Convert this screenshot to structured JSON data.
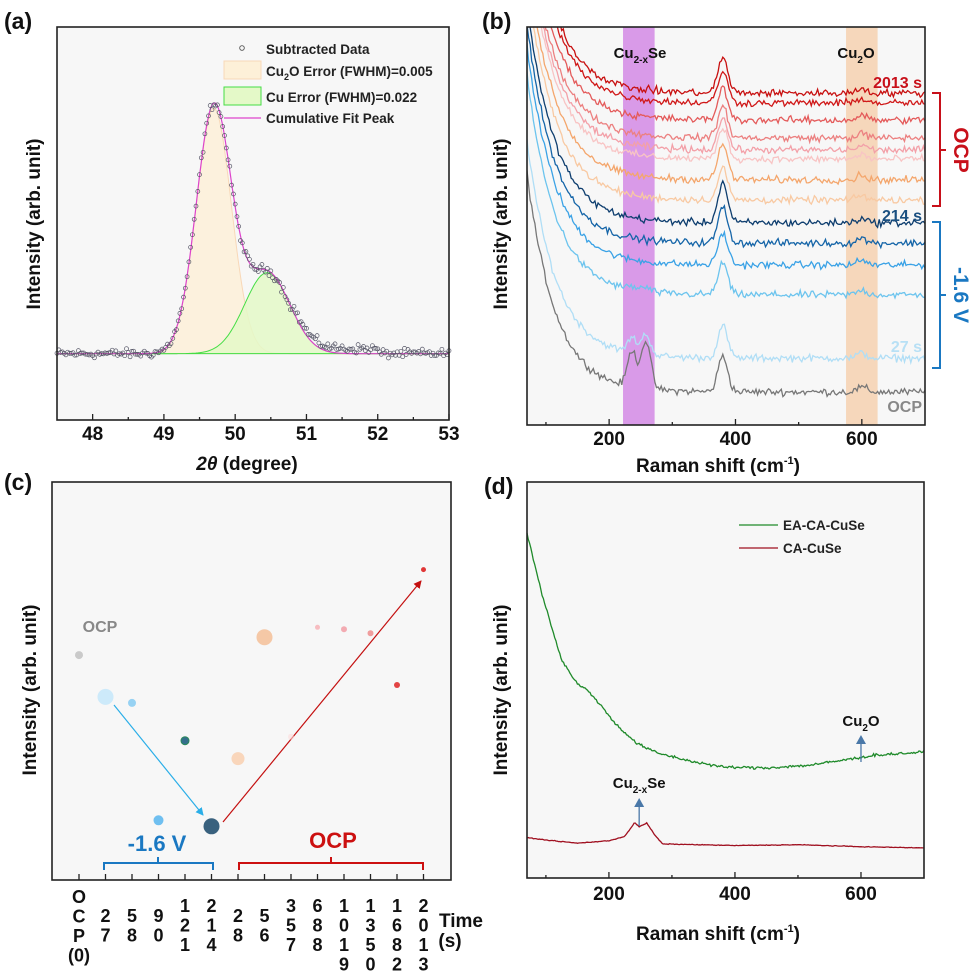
{
  "panels": {
    "a": "(a)",
    "b": "(b)",
    "c": "(c)",
    "d": "(d)"
  },
  "ylabel": "Intensity (arb. unit)",
  "chart_data": [
    {
      "panel": "a",
      "type": "scatter",
      "xlabel": {
        "italic": "2θ",
        "rest": " (degree)"
      },
      "ylabel": "Intensity (arb. unit)",
      "xlim": [
        47.5,
        53
      ],
      "ylim": [
        -0.27,
        1.33
      ],
      "xticks": [
        48,
        49,
        50,
        51,
        52,
        53
      ],
      "fit_peaks": [
        {
          "name": "Cu2O",
          "center": 49.7,
          "amplitude": 1.0,
          "fwhm": 0.58,
          "fill": "#fdf0d8",
          "stroke": "#f8d8b8"
        },
        {
          "name": "Cu",
          "center": 50.45,
          "amplitude": 0.33,
          "fwhm": 0.75,
          "fill": "#e4f9c8",
          "stroke": "#44dd44"
        }
      ],
      "cumulative_color": "#dd44cc",
      "legend": [
        {
          "label": "Subtracted Data"
        },
        {
          "base": "Cu",
          "sub": "2",
          "rest": "O Error (FWHM)=0.005"
        },
        {
          "label": "Cu Error (FWHM)=0.022"
        },
        {
          "label": "Cumulative Fit Peak"
        }
      ]
    },
    {
      "panel": "b",
      "type": "line",
      "xlabel": {
        "base": "Raman shift (cm",
        "sup": "-1",
        "rest": ")"
      },
      "ylabel": "Intensity (arb. unit)",
      "xlim": [
        70,
        700
      ],
      "ylim": [
        0,
        100
      ],
      "xticks": [
        200,
        400,
        600
      ],
      "bands": [
        {
          "from": 222,
          "to": 272,
          "color": "#d99ae8",
          "label": {
            "base": "Cu",
            "sub": "2-x",
            "rest": "Se"
          }
        },
        {
          "from": 575,
          "to": 625,
          "color": "#f6d7bb",
          "label": {
            "base": "Cu",
            "sub": "2",
            "rest": "O"
          }
        }
      ],
      "series": [
        {
          "time": "OCP",
          "offset": 8.3,
          "peak380": 9,
          "peak250": 12,
          "color": "#777777"
        },
        {
          "time": "27",
          "offset": 16.8,
          "peak380": 8,
          "peak250": 5,
          "color": "#b0def6"
        },
        {
          "time": "58",
          "offset": 32.7,
          "peak380": 8,
          "peak250": 1,
          "color": "#6cc4ee"
        },
        {
          "time": "90",
          "offset": 40.2,
          "peak380": 8,
          "peak250": 0,
          "color": "#3aa2e6"
        },
        {
          "time": "121",
          "offset": 45.7,
          "peak380": 9,
          "peak250": 0,
          "color": "#1565a8"
        },
        {
          "time": "214",
          "offset": 50.8,
          "peak380": 10,
          "peak250": 0,
          "color": "#0d3d6e"
        },
        {
          "time": "28",
          "offset": 56.5,
          "peak380": 8,
          "peak250": 0,
          "color": "#f8c9a2"
        },
        {
          "time": "56",
          "offset": 61.6,
          "peak380": 9,
          "peak250": 0,
          "color": "#f4a66c"
        },
        {
          "time": "357",
          "offset": 66.8,
          "peak380": 8,
          "peak250": 0,
          "color": "#f8c4c4"
        },
        {
          "time": "688",
          "offset": 69.1,
          "peak380": 8,
          "peak250": 0,
          "color": "#f3a0a8"
        },
        {
          "time": "1019",
          "offset": 72.1,
          "peak380": 8,
          "peak250": 0,
          "color": "#ec8080"
        },
        {
          "time": "1350",
          "offset": 76.6,
          "peak380": 8,
          "peak250": 0,
          "color": "#e45a5a"
        },
        {
          "time": "1682",
          "offset": 80.9,
          "peak380": 8,
          "peak250": 0,
          "color": "#d01818"
        },
        {
          "time": "2013",
          "offset": 83.4,
          "peak380": 9,
          "peak250": 0,
          "color": "#c81010"
        }
      ],
      "trace_labels": [
        {
          "text": "2013 s",
          "color": "#c8101a"
        },
        {
          "text": "214 s",
          "color": "#1a4f80"
        },
        {
          "text": "27 s",
          "color": "#b8e0f5"
        },
        {
          "text": "OCP",
          "color": "#888888"
        }
      ],
      "groups": [
        {
          "label": "OCP",
          "color": "#c8101a"
        },
        {
          "label": "-1.6 V",
          "color": "#1a78c2"
        }
      ]
    },
    {
      "panel": "c",
      "type": "scatter",
      "xlabel": {
        "line1": "Time",
        "line2": "(s)"
      },
      "ylabel": "Intensity (arb. unit)",
      "ylim": [
        0,
        100
      ],
      "categories": [
        "OCP(0)",
        "27",
        "58",
        "90",
        "121",
        "214",
        "28",
        "56",
        "357",
        "688",
        "1019",
        "1350",
        "1682",
        "2013"
      ],
      "values": [
        56.5,
        46,
        44.5,
        15,
        35,
        13.5,
        30.5,
        61,
        36,
        63.5,
        63,
        62,
        49,
        78
      ],
      "colors": [
        "#c4c4c4",
        "#c8e8fa",
        "#8ccdf2",
        "#5fb8ee",
        "#1f5f80",
        "#245070",
        "#f8d2b4",
        "#f4c29c",
        "#fbdcdc",
        "#f6b6ba",
        "#f2a2aa",
        "#ee9292",
        "#e03030",
        "#dd2020"
      ],
      "annotations": {
        "ocp_start": "OCP",
        "group1": "-1.6 V",
        "group2": "OCP"
      },
      "group_colors": {
        "group1": "#1a78c2",
        "group2": "#cc1010",
        "ocp": "#888888",
        "arrow1": "#2aaee8",
        "arrow2": "#c41010"
      }
    },
    {
      "panel": "d",
      "type": "line",
      "xlabel": {
        "base": "Raman shift (cm",
        "sup": "-1",
        "rest": ")"
      },
      "ylabel": "Intensity (arb. unit)",
      "xlim": [
        70,
        700
      ],
      "ylim": [
        0,
        100
      ],
      "xticks": [
        200,
        400,
        600
      ],
      "series": [
        {
          "name": "EA-CA-CuSe",
          "color": "#1f8a2a",
          "points": [
            [
              70,
              87
            ],
            [
              95,
              71
            ],
            [
              125,
              55
            ],
            [
              150,
              49
            ],
            [
              165,
              47.5
            ],
            [
              180,
              45
            ],
            [
              210,
              39
            ],
            [
              244,
              34
            ],
            [
              276,
              31.6
            ],
            [
              330,
              29.5
            ],
            [
              381,
              28
            ],
            [
              451,
              27.8
            ],
            [
              520,
              28.5
            ],
            [
              594,
              30.3
            ],
            [
              620,
              31
            ],
            [
              700,
              31.8
            ]
          ]
        },
        {
          "name": "CA-CuSe",
          "color": "#a01020",
          "points": [
            [
              70,
              10.2
            ],
            [
              100,
              9.6
            ],
            [
              150,
              8.8
            ],
            [
              200,
              9.4
            ],
            [
              225,
              10.5
            ],
            [
              241,
              14
            ],
            [
              248,
              12.9
            ],
            [
              260,
              13.9
            ],
            [
              272,
              11
            ],
            [
              285,
              8.6
            ],
            [
              400,
              8.2
            ],
            [
              500,
              8.4
            ],
            [
              600,
              7.9
            ],
            [
              700,
              7.6
            ]
          ]
        }
      ],
      "annotations": [
        {
          "x": 248,
          "label": {
            "base": "Cu",
            "sub": "2-x",
            "rest": "Se"
          }
        },
        {
          "x": 600,
          "label": {
            "base": "Cu",
            "sub": "2",
            "rest": "O"
          }
        }
      ],
      "arrow_color": "#4a78a8"
    }
  ]
}
